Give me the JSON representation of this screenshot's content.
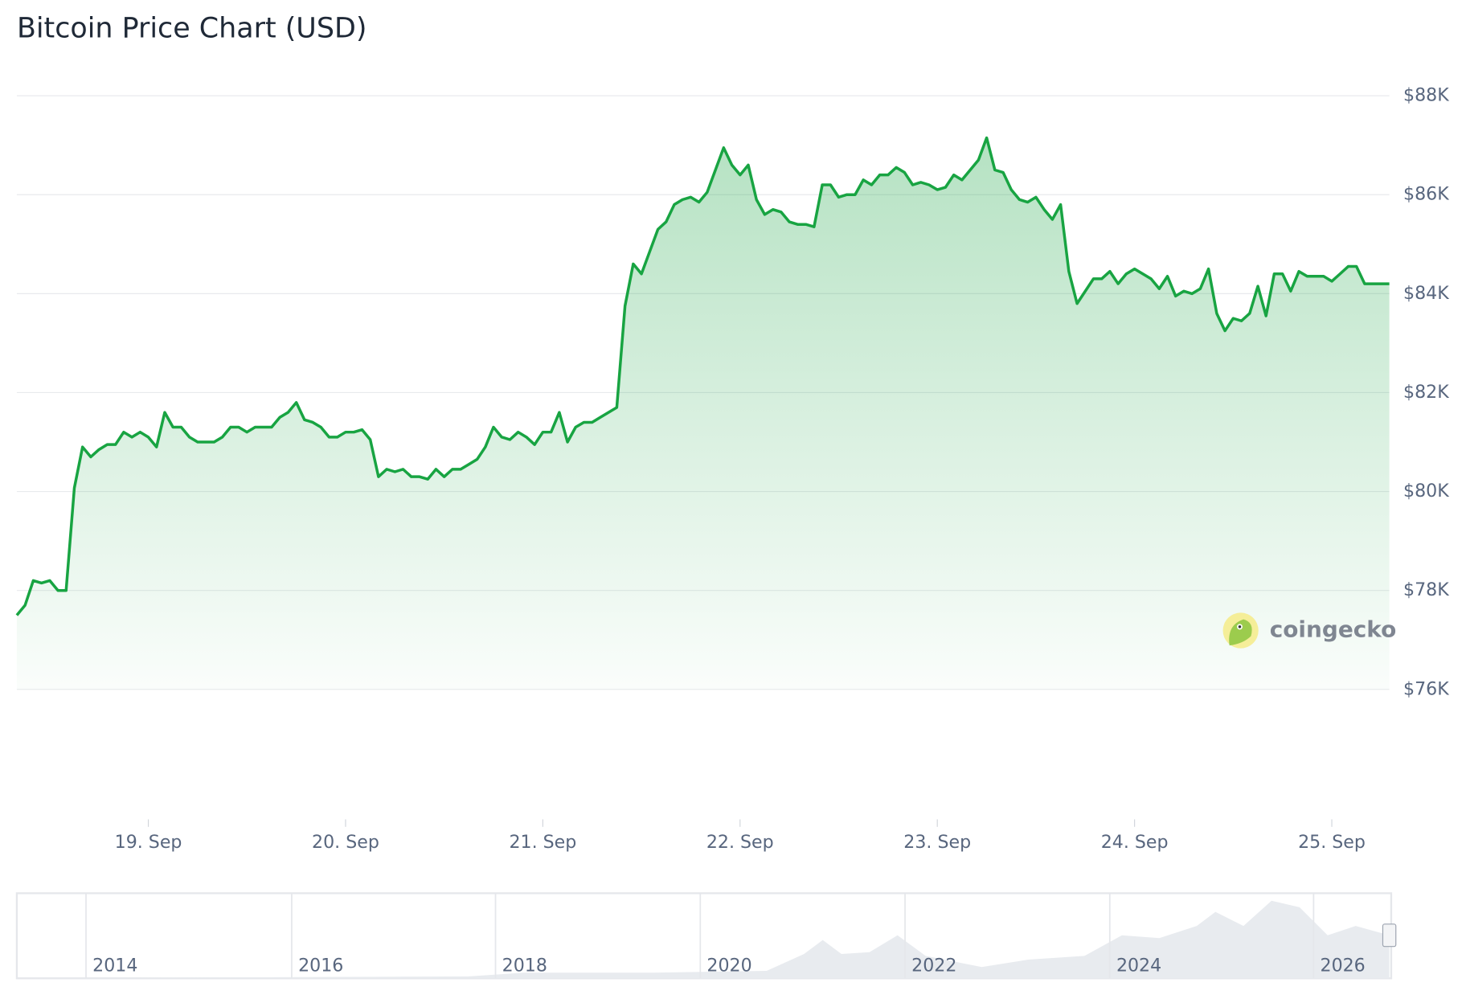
{
  "chart_data": {
    "type": "line",
    "title": "Bitcoin Price Chart (USD)",
    "watermark": "coingecko",
    "color": "#18a442",
    "grid": true,
    "ylim": [
      76000,
      88000
    ],
    "yticks": [
      {
        "value": 76000,
        "label": "$76K"
      },
      {
        "value": 78000,
        "label": "$78K"
      },
      {
        "value": 80000,
        "label": "$80K"
      },
      {
        "value": 82000,
        "label": "$82K"
      },
      {
        "value": 84000,
        "label": "$84K"
      },
      {
        "value": 86000,
        "label": "$86K"
      },
      {
        "value": 88000,
        "label": "$88K"
      }
    ],
    "categories": [
      null,
      null,
      null,
      null,
      null,
      null,
      null,
      null,
      null,
      null,
      null,
      null,
      null,
      null,
      null,
      null,
      "19. Sep",
      null,
      null,
      null,
      null,
      null,
      null,
      null,
      null,
      null,
      null,
      null,
      null,
      null,
      null,
      null,
      null,
      null,
      null,
      null,
      null,
      null,
      null,
      null,
      "20. Sep",
      null,
      null,
      null,
      null,
      null,
      null,
      null,
      null,
      null,
      null,
      null,
      null,
      null,
      null,
      null,
      null,
      null,
      null,
      null,
      null,
      null,
      null,
      null,
      "21. Sep",
      null,
      null,
      null,
      null,
      null,
      null,
      null,
      null,
      null,
      null,
      null,
      null,
      null,
      null,
      null,
      null,
      null,
      null,
      null,
      null,
      null,
      null,
      null,
      "22. Sep",
      null,
      null,
      null,
      null,
      null,
      null,
      null,
      null,
      null,
      null,
      null,
      null,
      null,
      null,
      null,
      null,
      null,
      null,
      null,
      null,
      null,
      null,
      null,
      "23. Sep",
      null,
      null,
      null,
      null,
      null,
      null,
      null,
      null,
      null,
      null,
      null,
      null,
      null,
      null,
      null,
      null,
      null,
      null,
      null,
      null,
      null,
      null,
      null,
      "24. Sep",
      null,
      null,
      null,
      null,
      null,
      null,
      null,
      null,
      null,
      null,
      null,
      null,
      null,
      null,
      null,
      null,
      null,
      null,
      null,
      null,
      null,
      null,
      null,
      "25. Sep",
      null,
      null,
      null,
      null,
      null,
      null,
      null
    ],
    "values": [
      77500,
      77700,
      78200,
      78150,
      78200,
      78000,
      78000,
      80070,
      80900,
      80700,
      80850,
      80950,
      80950,
      81200,
      81100,
      81200,
      81100,
      80900,
      81600,
      81300,
      81300,
      81100,
      81000,
      81000,
      81000,
      81100,
      81300,
      81300,
      81200,
      81300,
      81300,
      81300,
      81500,
      81600,
      81800,
      81450,
      81400,
      81300,
      81100,
      81100,
      81200,
      81200,
      81250,
      81050,
      80300,
      80450,
      80400,
      80450,
      80300,
      80300,
      80250,
      80450,
      80300,
      80450,
      80450,
      80550,
      80650,
      80900,
      81300,
      81100,
      81050,
      81200,
      81100,
      80950,
      81200,
      81200,
      81600,
      81000,
      81300,
      81400,
      81400,
      81500,
      81600,
      81700,
      83750,
      84600,
      84400,
      84850,
      85300,
      85450,
      85800,
      85900,
      85950,
      85850,
      86050,
      86500,
      86950,
      86600,
      86400,
      86600,
      85900,
      85600,
      85700,
      85650,
      85450,
      85400,
      85400,
      85350,
      86200,
      86200,
      85950,
      86000,
      86000,
      86300,
      86200,
      86400,
      86400,
      86550,
      86450,
      86200,
      86250,
      86200,
      86100,
      86150,
      86400,
      86300,
      86500,
      86700,
      87150,
      86500,
      86450,
      86100,
      85900,
      85850,
      85950,
      85700,
      85500,
      85800,
      84450,
      83800,
      84050,
      84300,
      84300,
      84450,
      84200,
      84400,
      84500,
      84400,
      84300,
      84100,
      84350,
      83950,
      84050,
      84000,
      84100,
      84500,
      83600,
      83250,
      83500,
      83450,
      83600,
      84150,
      83550,
      84400,
      84400,
      84050,
      84450,
      84350,
      84350,
      84350,
      84250,
      84400,
      84550,
      84550,
      84200,
      84200,
      84200,
      84200
    ],
    "navigator_labels": [
      "2014",
      "2016",
      "2018",
      "2020",
      "2022",
      "2024",
      "2026"
    ]
  }
}
